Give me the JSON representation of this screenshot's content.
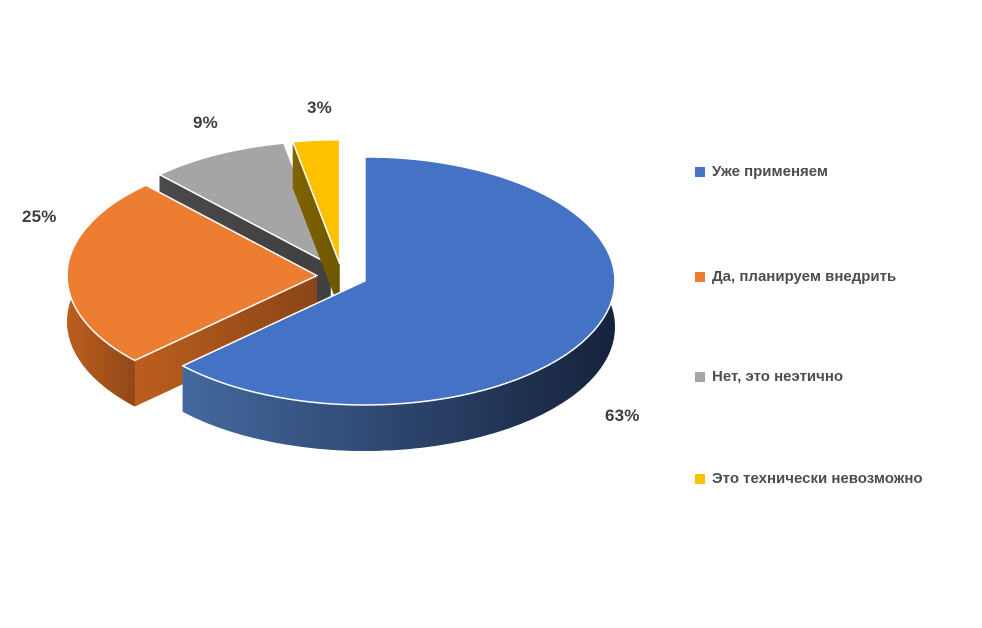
{
  "chart_data": {
    "type": "pie",
    "style": "3d-exploded",
    "title": "",
    "start_angle_deg": 0,
    "direction": "clockwise",
    "legend_position": "right",
    "background": "#FFFFFF",
    "categories": [
      "Уже применяем",
      "Да, планируем внедрить",
      "Нет, это неэтично",
      "Это технически невозможно"
    ],
    "values": [
      63,
      25,
      9,
      3
    ],
    "unit": "%",
    "percent_labels": [
      "63%",
      "25%",
      "9%",
      "3%"
    ],
    "colors": [
      "#4472C4",
      "#ED7D31",
      "#A5A5A5",
      "#FFC000"
    ],
    "side_gradients": [
      [
        "#44699F",
        "#16223C"
      ],
      [
        "#BC5E1E",
        "#8A4517"
      ],
      [
        "#4A4A4A",
        "#3F3F3F"
      ],
      [
        "#806400",
        "#6E5600"
      ]
    ],
    "data_label_color": "#3F3F3F",
    "legend_text_color": "#4D4D4D"
  }
}
